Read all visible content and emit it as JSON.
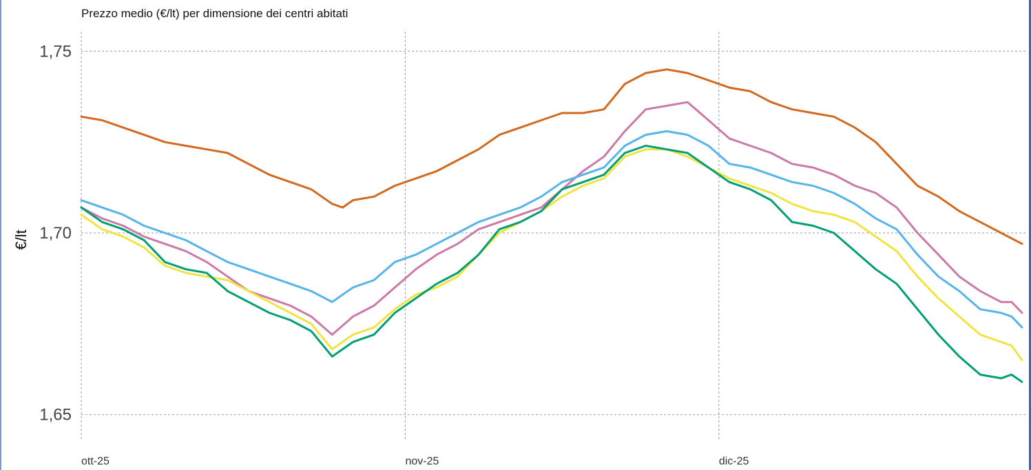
{
  "chart_data": {
    "type": "line",
    "title": "Prezzo medio (€/lt) per dimensione dei centri abitati",
    "ylabel": "€/lt",
    "xlabel": "",
    "ylim": [
      1.65,
      1.75
    ],
    "yticks": [
      1.65,
      1.7,
      1.75
    ],
    "ytick_labels": [
      "1,65",
      "1,70",
      "1,75"
    ],
    "x_range": [
      0,
      90
    ],
    "xticks": [
      0,
      31,
      61
    ],
    "xtick_labels": [
      "ott-25",
      "nov-25",
      "dic-25"
    ],
    "grid": true,
    "series": [
      {
        "color": "#d2691e",
        "points": [
          [
            0,
            1.732
          ],
          [
            2,
            1.731
          ],
          [
            4,
            1.729
          ],
          [
            6,
            1.727
          ],
          [
            8,
            1.725
          ],
          [
            10,
            1.724
          ],
          [
            12,
            1.723
          ],
          [
            14,
            1.722
          ],
          [
            16,
            1.719
          ],
          [
            18,
            1.716
          ],
          [
            20,
            1.714
          ],
          [
            22,
            1.712
          ],
          [
            24,
            1.708
          ],
          [
            25,
            1.707
          ],
          [
            26,
            1.709
          ],
          [
            28,
            1.71
          ],
          [
            30,
            1.713
          ],
          [
            32,
            1.715
          ],
          [
            34,
            1.717
          ],
          [
            36,
            1.72
          ],
          [
            38,
            1.723
          ],
          [
            40,
            1.727
          ],
          [
            42,
            1.729
          ],
          [
            44,
            1.731
          ],
          [
            46,
            1.733
          ],
          [
            48,
            1.733
          ],
          [
            50,
            1.734
          ],
          [
            52,
            1.741
          ],
          [
            54,
            1.744
          ],
          [
            56,
            1.745
          ],
          [
            58,
            1.744
          ],
          [
            60,
            1.742
          ],
          [
            62,
            1.74
          ],
          [
            64,
            1.739
          ],
          [
            66,
            1.736
          ],
          [
            68,
            1.734
          ],
          [
            70,
            1.733
          ],
          [
            72,
            1.732
          ],
          [
            74,
            1.729
          ],
          [
            76,
            1.725
          ],
          [
            78,
            1.719
          ],
          [
            80,
            1.713
          ],
          [
            82,
            1.71
          ],
          [
            84,
            1.706
          ],
          [
            86,
            1.703
          ],
          [
            88,
            1.7
          ],
          [
            90,
            1.697
          ]
        ]
      },
      {
        "color": "#cc79a7",
        "points": [
          [
            0,
            1.707
          ],
          [
            2,
            1.704
          ],
          [
            4,
            1.702
          ],
          [
            6,
            1.699
          ],
          [
            8,
            1.697
          ],
          [
            10,
            1.695
          ],
          [
            12,
            1.692
          ],
          [
            14,
            1.688
          ],
          [
            16,
            1.684
          ],
          [
            18,
            1.682
          ],
          [
            20,
            1.68
          ],
          [
            22,
            1.677
          ],
          [
            24,
            1.672
          ],
          [
            26,
            1.677
          ],
          [
            28,
            1.68
          ],
          [
            30,
            1.685
          ],
          [
            32,
            1.69
          ],
          [
            34,
            1.694
          ],
          [
            36,
            1.697
          ],
          [
            38,
            1.701
          ],
          [
            40,
            1.703
          ],
          [
            42,
            1.705
          ],
          [
            44,
            1.707
          ],
          [
            46,
            1.712
          ],
          [
            48,
            1.717
          ],
          [
            50,
            1.721
          ],
          [
            52,
            1.728
          ],
          [
            54,
            1.734
          ],
          [
            56,
            1.735
          ],
          [
            58,
            1.736
          ],
          [
            60,
            1.731
          ],
          [
            62,
            1.726
          ],
          [
            64,
            1.724
          ],
          [
            66,
            1.722
          ],
          [
            68,
            1.719
          ],
          [
            70,
            1.718
          ],
          [
            72,
            1.716
          ],
          [
            74,
            1.713
          ],
          [
            76,
            1.711
          ],
          [
            78,
            1.707
          ],
          [
            80,
            1.7
          ],
          [
            82,
            1.694
          ],
          [
            84,
            1.688
          ],
          [
            86,
            1.684
          ],
          [
            88,
            1.681
          ],
          [
            89,
            1.681
          ],
          [
            90,
            1.678
          ]
        ]
      },
      {
        "color": "#56b4e9",
        "points": [
          [
            0,
            1.709
          ],
          [
            2,
            1.707
          ],
          [
            4,
            1.705
          ],
          [
            6,
            1.702
          ],
          [
            8,
            1.7
          ],
          [
            10,
            1.698
          ],
          [
            12,
            1.695
          ],
          [
            14,
            1.692
          ],
          [
            16,
            1.69
          ],
          [
            18,
            1.688
          ],
          [
            20,
            1.686
          ],
          [
            22,
            1.684
          ],
          [
            24,
            1.681
          ],
          [
            26,
            1.685
          ],
          [
            28,
            1.687
          ],
          [
            30,
            1.692
          ],
          [
            32,
            1.694
          ],
          [
            34,
            1.697
          ],
          [
            36,
            1.7
          ],
          [
            38,
            1.703
          ],
          [
            40,
            1.705
          ],
          [
            42,
            1.707
          ],
          [
            44,
            1.71
          ],
          [
            46,
            1.714
          ],
          [
            48,
            1.716
          ],
          [
            50,
            1.718
          ],
          [
            52,
            1.724
          ],
          [
            54,
            1.727
          ],
          [
            56,
            1.728
          ],
          [
            58,
            1.727
          ],
          [
            60,
            1.724
          ],
          [
            62,
            1.719
          ],
          [
            64,
            1.718
          ],
          [
            66,
            1.716
          ],
          [
            68,
            1.714
          ],
          [
            70,
            1.713
          ],
          [
            72,
            1.711
          ],
          [
            74,
            1.708
          ],
          [
            76,
            1.704
          ],
          [
            78,
            1.701
          ],
          [
            80,
            1.694
          ],
          [
            82,
            1.688
          ],
          [
            84,
            1.684
          ],
          [
            86,
            1.679
          ],
          [
            88,
            1.678
          ],
          [
            89,
            1.677
          ],
          [
            90,
            1.674
          ]
        ]
      },
      {
        "color": "#f0e442",
        "points": [
          [
            0,
            1.705
          ],
          [
            2,
            1.701
          ],
          [
            4,
            1.699
          ],
          [
            6,
            1.696
          ],
          [
            8,
            1.691
          ],
          [
            10,
            1.689
          ],
          [
            12,
            1.688
          ],
          [
            14,
            1.687
          ],
          [
            16,
            1.684
          ],
          [
            18,
            1.681
          ],
          [
            20,
            1.678
          ],
          [
            22,
            1.675
          ],
          [
            24,
            1.668
          ],
          [
            26,
            1.672
          ],
          [
            28,
            1.674
          ],
          [
            30,
            1.679
          ],
          [
            32,
            1.683
          ],
          [
            34,
            1.685
          ],
          [
            36,
            1.688
          ],
          [
            38,
            1.694
          ],
          [
            40,
            1.7
          ],
          [
            42,
            1.703
          ],
          [
            44,
            1.706
          ],
          [
            46,
            1.71
          ],
          [
            48,
            1.713
          ],
          [
            50,
            1.715
          ],
          [
            52,
            1.721
          ],
          [
            54,
            1.723
          ],
          [
            56,
            1.723
          ],
          [
            58,
            1.721
          ],
          [
            60,
            1.718
          ],
          [
            62,
            1.715
          ],
          [
            64,
            1.713
          ],
          [
            66,
            1.711
          ],
          [
            68,
            1.708
          ],
          [
            70,
            1.706
          ],
          [
            72,
            1.705
          ],
          [
            74,
            1.703
          ],
          [
            76,
            1.699
          ],
          [
            78,
            1.695
          ],
          [
            80,
            1.688
          ],
          [
            82,
            1.682
          ],
          [
            84,
            1.677
          ],
          [
            86,
            1.672
          ],
          [
            88,
            1.67
          ],
          [
            89,
            1.669
          ],
          [
            90,
            1.665
          ]
        ]
      },
      {
        "color": "#009e73",
        "points": [
          [
            0,
            1.707
          ],
          [
            2,
            1.703
          ],
          [
            4,
            1.701
          ],
          [
            6,
            1.698
          ],
          [
            8,
            1.692
          ],
          [
            10,
            1.69
          ],
          [
            12,
            1.689
          ],
          [
            14,
            1.684
          ],
          [
            16,
            1.681
          ],
          [
            18,
            1.678
          ],
          [
            20,
            1.676
          ],
          [
            22,
            1.673
          ],
          [
            24,
            1.666
          ],
          [
            26,
            1.67
          ],
          [
            28,
            1.672
          ],
          [
            30,
            1.678
          ],
          [
            32,
            1.682
          ],
          [
            34,
            1.686
          ],
          [
            36,
            1.689
          ],
          [
            38,
            1.694
          ],
          [
            40,
            1.701
          ],
          [
            42,
            1.703
          ],
          [
            44,
            1.706
          ],
          [
            46,
            1.712
          ],
          [
            48,
            1.714
          ],
          [
            50,
            1.716
          ],
          [
            52,
            1.722
          ],
          [
            54,
            1.724
          ],
          [
            56,
            1.723
          ],
          [
            58,
            1.722
          ],
          [
            60,
            1.718
          ],
          [
            62,
            1.714
          ],
          [
            64,
            1.712
          ],
          [
            66,
            1.709
          ],
          [
            68,
            1.703
          ],
          [
            70,
            1.702
          ],
          [
            72,
            1.7
          ],
          [
            74,
            1.695
          ],
          [
            76,
            1.69
          ],
          [
            78,
            1.686
          ],
          [
            80,
            1.679
          ],
          [
            82,
            1.672
          ],
          [
            84,
            1.666
          ],
          [
            86,
            1.661
          ],
          [
            88,
            1.66
          ],
          [
            89,
            1.661
          ],
          [
            90,
            1.659
          ]
        ]
      }
    ]
  }
}
